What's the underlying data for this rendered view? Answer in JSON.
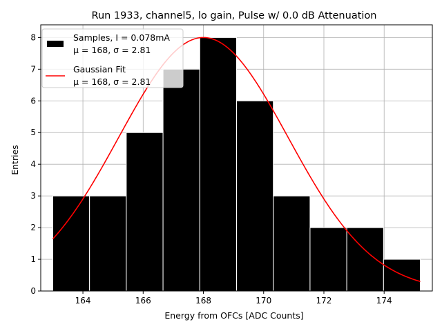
{
  "chart_data": {
    "type": "bar",
    "title": "Run 1933, channel5, lo gain, Pulse w/ 0.0 dB Attenuation",
    "xlabel": "Energy from OFCs [ADC Counts]",
    "ylabel": "Entries",
    "xlim": [
      162.6,
      175.6
    ],
    "ylim": [
      0,
      8.4
    ],
    "xticks": [
      164,
      166,
      168,
      170,
      172,
      174
    ],
    "yticks": [
      0,
      1,
      2,
      3,
      4,
      5,
      6,
      7,
      8
    ],
    "grid": true,
    "legend_position": "top-left",
    "bins": [
      {
        "x0": 163.0,
        "x1": 164.22,
        "count": 3
      },
      {
        "x0": 164.22,
        "x1": 165.44,
        "count": 3
      },
      {
        "x0": 165.44,
        "x1": 166.66,
        "count": 5
      },
      {
        "x0": 166.66,
        "x1": 167.88,
        "count": 7
      },
      {
        "x0": 167.88,
        "x1": 169.1,
        "count": 8
      },
      {
        "x0": 169.1,
        "x1": 170.32,
        "count": 6
      },
      {
        "x0": 170.32,
        "x1": 171.54,
        "count": 3
      },
      {
        "x0": 171.54,
        "x1": 172.76,
        "count": 2
      },
      {
        "x0": 172.76,
        "x1": 173.98,
        "count": 2
      },
      {
        "x0": 173.98,
        "x1": 175.2,
        "count": 1
      }
    ],
    "fit": {
      "type": "gaussian",
      "amplitude": 8.0,
      "mu": 168.0,
      "sigma": 2.81,
      "x_range": [
        163.0,
        175.2
      ],
      "color": "#ff0000"
    },
    "legend": [
      {
        "line1": "Samples, I = 0.078mA",
        "line2": "μ = 168, σ = 2.81",
        "symbol": "patch",
        "color": "#000000"
      },
      {
        "line1": "Gaussian Fit",
        "line2": "μ = 168, σ = 2.81",
        "symbol": "line",
        "color": "#ff0000"
      }
    ],
    "colors": {
      "bars": "#000000",
      "bar_edge": "#ffffff",
      "grid": "#b0b0b0",
      "fit": "#ff0000"
    }
  }
}
